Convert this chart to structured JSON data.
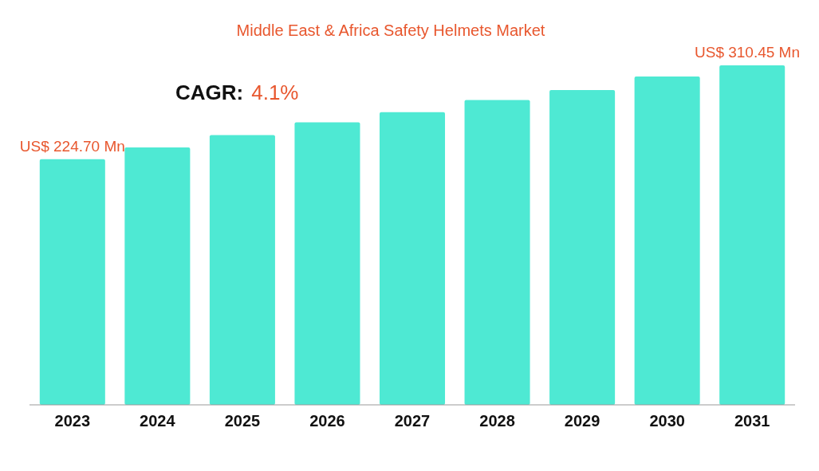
{
  "chart_data": {
    "type": "bar",
    "title": "Middle East & Africa Safety Helmets Market",
    "categories": [
      "2023",
      "2024",
      "2025",
      "2026",
      "2027",
      "2028",
      "2029",
      "2030",
      "2031"
    ],
    "values": [
      224.7,
      235.3,
      246.7,
      258.4,
      267.6,
      278.7,
      287.9,
      300.2,
      310.45
    ],
    "value_labels": [
      "US$ 224.70 Mn",
      null,
      null,
      null,
      null,
      null,
      null,
      null,
      "US$ 310.45 Mn"
    ],
    "color": "#4ee9d3",
    "annotations": [
      "CAGR:",
      "4.1%"
    ]
  }
}
